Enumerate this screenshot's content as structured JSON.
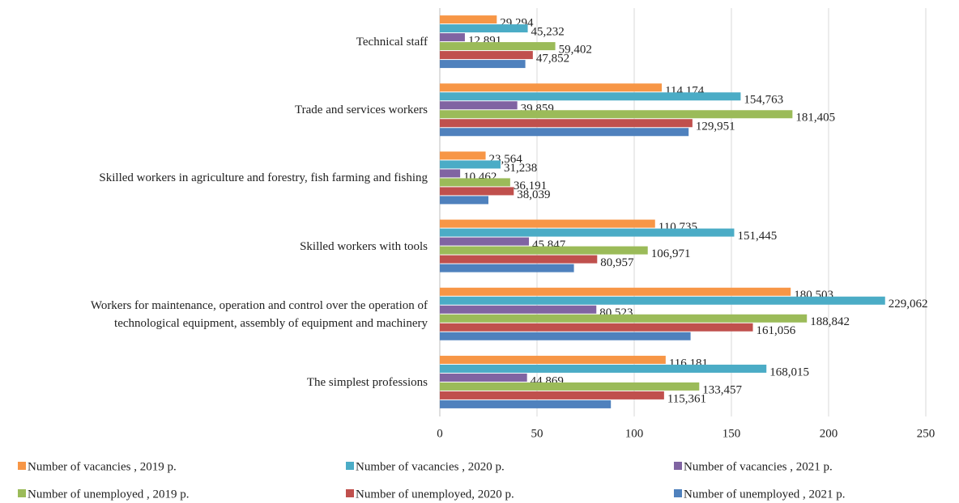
{
  "chart_data": {
    "type": "bar",
    "orientation": "horizontal",
    "categories": [
      "Technical staff",
      "Trade and services workers",
      "Skilled workers in agriculture and forestry, fish farming and fishing",
      "Skilled workers with tools",
      "Workers for maintenance, operation and control over the operation of\ntechnological equipment, assembly of equipment and machinery",
      "The simplest professions"
    ],
    "series": [
      {
        "name": "Number of vacancies , 2019 p.",
        "color": "#f79646",
        "values": [
          29.294,
          114.174,
          23.564,
          110.735,
          180.503,
          116.181
        ],
        "value_labels": [
          "29,294",
          "114,174",
          "23,564",
          "110,735",
          "180,503",
          "116,181"
        ]
      },
      {
        "name": "Number of vacancies , 2020 p.",
        "color": "#4bacc6",
        "values": [
          45.232,
          154.763,
          31.238,
          151.445,
          229.062,
          168.015
        ],
        "value_labels": [
          "45,232",
          "154,763",
          "31,238",
          "151,445",
          "229,062",
          "168,015"
        ]
      },
      {
        "name": "Number of vacancies , 2021 p.",
        "color": "#8064a2",
        "values": [
          12.891,
          39.859,
          10.462,
          45.847,
          80.523,
          44.869
        ],
        "value_labels": [
          "12,891",
          "39,859",
          "10,462",
          "45,847",
          "80,523",
          "44,869"
        ]
      },
      {
        "name": "Number of unemployed , 2019 p.",
        "color": "#9bbb59",
        "values": [
          59.402,
          181.405,
          36.191,
          106.971,
          188.842,
          133.457
        ],
        "value_labels": [
          "59,402",
          "181,405",
          "36,191",
          "106,971",
          "188,842",
          "133,457"
        ]
      },
      {
        "name": "Number of unemployed, 2020 p.",
        "color": "#c0504d",
        "values": [
          47.852,
          129.951,
          38.039,
          80.957,
          161.056,
          115.361
        ],
        "value_labels": [
          "47,852",
          "129,951",
          "38,039",
          "80,957",
          "161,056",
          "115,361"
        ]
      },
      {
        "name": "Number of unemployed , 2021 p.",
        "color": "#4f81bd",
        "values": [
          44,
          128,
          25,
          69,
          129,
          88
        ]
      }
    ],
    "xlim": [
      0,
      250
    ],
    "xticks": [
      0,
      50,
      100,
      150,
      200,
      250
    ],
    "grid": true,
    "legend": "bottom"
  }
}
